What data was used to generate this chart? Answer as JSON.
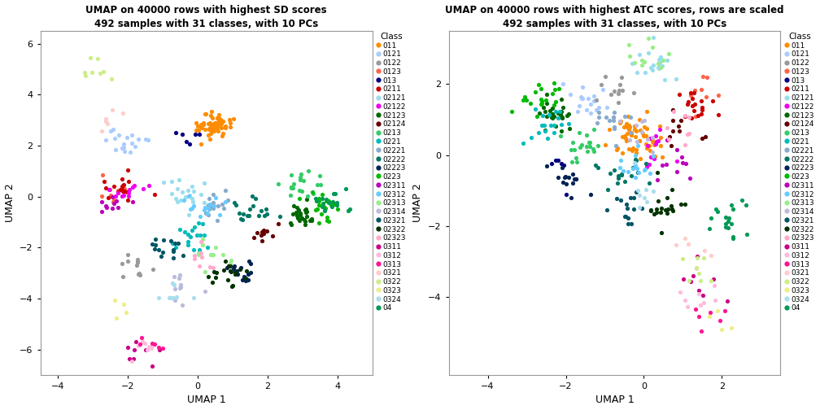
{
  "title1": "UMAP on 40000 rows with highest SD scores\n492 samples with 31 classes, with 10 PCs",
  "title2": "UMAP on 40000 rows with highest ATC scores, rows are scaled\n492 samples with 31 classes, with 10 PCs",
  "xlabel": "UMAP 1",
  "ylabel": "UMAP 2",
  "legend_title": "Class",
  "classes": [
    "011",
    "0121",
    "0122",
    "0123",
    "013",
    "0211",
    "02121",
    "02122",
    "02123",
    "02124",
    "0213",
    "0221",
    "02221",
    "02222",
    "02223",
    "0223",
    "02311",
    "02312",
    "02313",
    "02314",
    "02321",
    "02322",
    "02323",
    "0311",
    "0312",
    "0313",
    "0321",
    "0322",
    "0323",
    "0324",
    "04"
  ],
  "colors": [
    "#FF8C00",
    "#AACCFF",
    "#999999",
    "#FF6347",
    "#000080",
    "#CC0000",
    "#99DDEE",
    "#EE00EE",
    "#006600",
    "#660000",
    "#33CC66",
    "#00BBBB",
    "#88AACC",
    "#007766",
    "#002255",
    "#00BB00",
    "#BB00BB",
    "#66CCFF",
    "#99EE88",
    "#BBBBDD",
    "#005566",
    "#003300",
    "#FFAACC",
    "#CC0088",
    "#FFBBDD",
    "#FF1493",
    "#FFCCCC",
    "#CCEE88",
    "#EEEE88",
    "#AADDEE",
    "#009955"
  ],
  "xlim1": [
    -4.5,
    5.0
  ],
  "ylim1": [
    -7.0,
    6.5
  ],
  "xlim2": [
    -5.0,
    3.5
  ],
  "ylim2": [
    -6.2,
    3.5
  ],
  "xticks1": [
    -4,
    -2,
    0,
    2,
    4
  ],
  "yticks1": [
    -6,
    -4,
    -2,
    0,
    2,
    4,
    6
  ],
  "xticks2": [
    -4,
    -2,
    0,
    2
  ],
  "yticks2": [
    -4,
    -2,
    0,
    2
  ],
  "bg_color": "#FFFFFF",
  "point_size": 14,
  "title_fontsize": 8.5,
  "axis_fontsize": 9,
  "tick_fontsize": 8,
  "legend_fontsize": 6.5,
  "legend_title_fontsize": 7.5
}
